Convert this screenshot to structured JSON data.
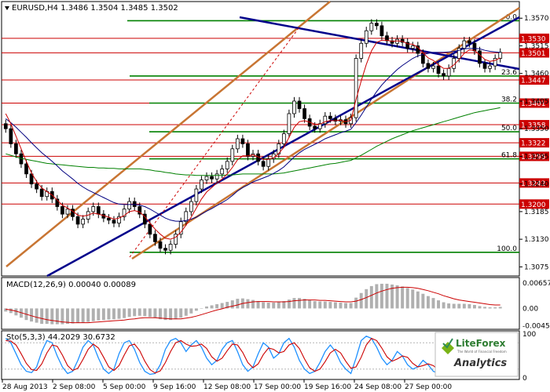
{
  "colors": {
    "up": "#000000",
    "down": "#000000",
    "ma_red": "#cc0000",
    "ma_blue": "#000080",
    "ma_green": "#008000",
    "fib": "#008000",
    "level_red": "#cc0000",
    "trend_blue": "#00008b",
    "channel_orange": "#c87533",
    "macd_hist": "#b0b0b0",
    "macd_signal": "#cc0000",
    "stoch_main": "#1e90ff",
    "stoch_signal": "#cc0000"
  },
  "chart_data": {
    "type": "candlestick",
    "title": "EURUSD,H4  1.3486 1.3504 1.3485 1.3502",
    "ylim": [
      1.306,
      1.36
    ],
    "price_ticks": [
      "1.3570",
      "1.3515",
      "1.3460",
      "1.3405",
      "1.3350",
      "1.3295",
      "1.3240",
      "1.3185",
      "1.3130",
      "1.3075"
    ],
    "x_labels": [
      "28 Aug 2013",
      "2 Sep 08:00",
      "5 Sep 00:00",
      "9 Sep 16:00",
      "12 Sep 08:00",
      "17 Sep 00:00",
      "19 Sep 16:00",
      "24 Sep 08:00",
      "27 Sep 00:00"
    ],
    "resistance_levels": [
      {
        "label": "1.3530",
        "value": 1.353
      },
      {
        "label": "1.3501",
        "value": 1.3501
      },
      {
        "label": "1.3447",
        "value": 1.3447
      },
      {
        "label": "1.3401",
        "value": 1.3401
      },
      {
        "label": "1.3358",
        "value": 1.3358
      },
      {
        "label": "1.3322",
        "value": 1.3322
      },
      {
        "label": "1.3295",
        "value": 1.3295
      },
      {
        "label": "1.3242",
        "value": 1.3242
      },
      {
        "label": "1.3200",
        "value": 1.32
      }
    ],
    "fib_levels": [
      {
        "label": "0.0",
        "value": 1.3565
      },
      {
        "label": "23.6",
        "value": 1.3455
      },
      {
        "label": "38.2",
        "value": 1.3401
      },
      {
        "label": "50.0",
        "value": 1.3344
      },
      {
        "label": "61.8",
        "value": 1.329
      },
      {
        "label": "100.0",
        "value": 1.3104
      }
    ],
    "closes": [
      1.335,
      1.332,
      1.33,
      1.328,
      1.326,
      1.324,
      1.323,
      1.3215,
      1.3225,
      1.321,
      1.3195,
      1.318,
      1.319,
      1.3175,
      1.316,
      1.317,
      1.3185,
      1.3195,
      1.318,
      1.3172,
      1.3168,
      1.3162,
      1.3175,
      1.319,
      1.3205,
      1.3195,
      1.318,
      1.316,
      1.314,
      1.3125,
      1.3112,
      1.3108,
      1.312,
      1.314,
      1.3165,
      1.3185,
      1.3205,
      1.323,
      1.3248,
      1.3255,
      1.325,
      1.326,
      1.327,
      1.3285,
      1.331,
      1.333,
      1.332,
      1.3295,
      1.33,
      1.3285,
      1.3275,
      1.329,
      1.33,
      1.332,
      1.334,
      1.338,
      1.3405,
      1.339,
      1.337,
      1.3355,
      1.335,
      1.336,
      1.3375,
      1.337,
      1.3365,
      1.3368,
      1.336,
      1.3372,
      1.349,
      1.352,
      1.3545,
      1.356,
      1.3555,
      1.3535,
      1.3525,
      1.352,
      1.3528,
      1.3522,
      1.351,
      1.3515,
      1.35,
      1.348,
      1.347,
      1.3475,
      1.346,
      1.3455,
      1.347,
      1.349,
      1.351,
      1.3525,
      1.352,
      1.3505,
      1.348,
      1.347,
      1.3475,
      1.349,
      1.3502
    ],
    "ma_red": [
      1.338,
      1.336,
      1.3335,
      1.331,
      1.3285,
      1.3262,
      1.3245,
      1.3232,
      1.3225,
      1.3218,
      1.3208,
      1.3198,
      1.3192,
      1.3186,
      1.3178,
      1.3176,
      1.3178,
      1.3182,
      1.318,
      1.3177,
      1.3174,
      1.317,
      1.3172,
      1.3177,
      1.3185,
      1.3187,
      1.3184,
      1.3175,
      1.3162,
      1.315,
      1.314,
      1.3132,
      1.313,
      1.3134,
      1.3144,
      1.3158,
      1.3174,
      1.3192,
      1.321,
      1.3224,
      1.3233,
      1.3242,
      1.325,
      1.326,
      1.3273,
      1.3288,
      1.3296,
      1.3296,
      1.3298,
      1.3294,
      1.3289,
      1.3289,
      1.3292,
      1.3301,
      1.3313,
      1.3333,
      1.3353,
      1.3364,
      1.3366,
      1.3363,
      1.3359,
      1.3359,
      1.3364,
      1.3366,
      1.3366,
      1.3367,
      1.3364,
      1.3367,
      1.3408,
      1.3445,
      1.3478,
      1.3505,
      1.3522,
      1.3526,
      1.3526,
      1.3524,
      1.3525,
      1.3524,
      1.3519,
      1.3518,
      1.3512,
      1.3501,
      1.3491,
      1.3486,
      1.3477,
      1.347,
      1.347,
      1.3477,
      1.3488,
      1.35,
      1.3507,
      1.3506,
      1.3497,
      1.3488,
      1.3484,
      1.3486,
      1.3491
    ],
    "ma_blue": [
      1.337,
      1.3362,
      1.3353,
      1.3343,
      1.3333,
      1.3322,
      1.3312,
      1.3302,
      1.3294,
      1.3285,
      1.3276,
      1.3266,
      1.3258,
      1.325,
      1.3241,
      1.3234,
      1.3228,
      1.3223,
      1.3218,
      1.3213,
      1.3208,
      1.3203,
      1.32,
      1.3199,
      1.3199,
      1.3199,
      1.3198,
      1.3195,
      1.319,
      1.3184,
      1.3178,
      1.3172,
      1.3168,
      1.3166,
      1.3166,
      1.3167,
      1.317,
      1.3174,
      1.318,
      1.3186,
      1.3191,
      1.3197,
      1.3203,
      1.3209,
      1.3217,
      1.3226,
      1.3233,
      1.3238,
      1.3244,
      1.3248,
      1.3252,
      1.3256,
      1.3261,
      1.3267,
      1.3274,
      1.3284,
      1.3294,
      1.3302,
      1.3309,
      1.3314,
      1.3319,
      1.3324,
      1.333,
      1.3334,
      1.3338,
      1.3342,
      1.3345,
      1.3349,
      1.3362,
      1.3377,
      1.3393,
      1.3409,
      1.3424,
      1.3437,
      1.3448,
      1.3458,
      1.3468,
      1.3476,
      1.3483,
      1.349,
      1.3495,
      1.3498,
      1.35,
      1.3502,
      1.3502,
      1.3502,
      1.3503,
      1.3504,
      1.3506,
      1.3509,
      1.351,
      1.351,
      1.3509,
      1.3506,
      1.3504,
      1.3503,
      1.3502
    ],
    "ma_green": [
      1.33,
      1.3297,
      1.3294,
      1.3291,
      1.3289,
      1.3287,
      1.3285,
      1.3283,
      1.3281,
      1.328,
      1.3279,
      1.3278,
      1.3277,
      1.3276,
      1.3275,
      1.3274,
      1.3273,
      1.3273,
      1.3272,
      1.3272,
      1.3271,
      1.3271,
      1.327,
      1.327,
      1.327,
      1.327,
      1.327,
      1.3269,
      1.3268,
      1.3266,
      1.3265,
      1.3263,
      1.3262,
      1.326,
      1.3259,
      1.3258,
      1.3258,
      1.3257,
      1.3257,
      1.3257,
      1.3257,
      1.3257,
      1.3257,
      1.3258,
      1.3258,
      1.3259,
      1.326,
      1.326,
      1.326,
      1.326,
      1.326,
      1.326,
      1.326,
      1.3261,
      1.3262,
      1.3264,
      1.3266,
      1.3268,
      1.327,
      1.3272,
      1.3274,
      1.3276,
      1.3278,
      1.328,
      1.3281,
      1.3283,
      1.3285,
      1.3287,
      1.3292,
      1.3297,
      1.3303,
      1.3309,
      1.3315,
      1.332,
      1.3325,
      1.333,
      1.3334,
      1.3338,
      1.3342,
      1.3346,
      1.3349,
      1.3352,
      1.3355,
      1.3358,
      1.3361,
      1.3364,
      1.3367,
      1.337,
      1.3373,
      1.3376,
      1.3379,
      1.3382,
      1.3384,
      1.3386,
      1.3388,
      1.339,
      1.3392
    ],
    "macd": {
      "label": "MACD(12,26,9) 0.00040 0.00089",
      "ylim": [
        -0.005,
        0.0072
      ],
      "ticks": [
        "0.00657",
        "0.00",
        "-0.00453"
      ],
      "hist": [
        -0.0008,
        -0.0012,
        -0.0018,
        -0.0024,
        -0.003,
        -0.0034,
        -0.0037,
        -0.004,
        -0.004,
        -0.0041,
        -0.0041,
        -0.0041,
        -0.004,
        -0.0039,
        -0.0038,
        -0.0037,
        -0.0035,
        -0.0033,
        -0.0031,
        -0.003,
        -0.0029,
        -0.0028,
        -0.0027,
        -0.0025,
        -0.0022,
        -0.002,
        -0.0019,
        -0.002,
        -0.0022,
        -0.0025,
        -0.0028,
        -0.003,
        -0.003,
        -0.0028,
        -0.0024,
        -0.0019,
        -0.0013,
        -0.0006,
        0.0,
        0.0005,
        0.0008,
        0.0011,
        0.0014,
        0.0017,
        0.0021,
        0.0025,
        0.0026,
        0.0024,
        0.0022,
        0.0019,
        0.0016,
        0.0015,
        0.0015,
        0.0017,
        0.0019,
        0.0023,
        0.0027,
        0.0027,
        0.0025,
        0.0022,
        0.0019,
        0.0018,
        0.0018,
        0.0017,
        0.0016,
        0.0015,
        0.0014,
        0.0014,
        0.0028,
        0.004,
        0.005,
        0.0058,
        0.0063,
        0.0064,
        0.0064,
        0.0062,
        0.006,
        0.0057,
        0.0053,
        0.0049,
        0.0044,
        0.0038,
        0.0032,
        0.0027,
        0.0021,
        0.0016,
        0.0013,
        0.0012,
        0.0012,
        0.0012,
        0.0011,
        0.0009,
        0.0006,
        0.0004,
        0.0003,
        0.0003,
        0.0004
      ],
      "signal": [
        -0.0002,
        -0.0004,
        -0.0007,
        -0.0011,
        -0.0015,
        -0.0019,
        -0.0023,
        -0.0026,
        -0.0029,
        -0.0031,
        -0.0033,
        -0.0035,
        -0.0036,
        -0.0037,
        -0.0037,
        -0.0037,
        -0.0037,
        -0.0036,
        -0.0035,
        -0.0034,
        -0.0033,
        -0.0032,
        -0.0031,
        -0.003,
        -0.0028,
        -0.0027,
        -0.0025,
        -0.0024,
        -0.0024,
        -0.0024,
        -0.0025,
        -0.0026,
        -0.0027,
        -0.0027,
        -0.0027,
        -0.0025,
        -0.0023,
        -0.002,
        -0.0016,
        -0.0012,
        -0.0008,
        -0.0004,
        -0.0001,
        0.0003,
        0.0006,
        0.0009,
        0.0013,
        0.0015,
        0.0017,
        0.0018,
        0.0018,
        0.0018,
        0.0017,
        0.0017,
        0.0017,
        0.0018,
        0.002,
        0.0021,
        0.0022,
        0.0022,
        0.0022,
        0.0021,
        0.0021,
        0.002,
        0.0019,
        0.0018,
        0.0017,
        0.0017,
        0.0019,
        0.0023,
        0.0028,
        0.0034,
        0.004,
        0.0045,
        0.0049,
        0.0052,
        0.0054,
        0.0055,
        0.0055,
        0.0054,
        0.0052,
        0.0049,
        0.0046,
        0.0042,
        0.0038,
        0.0033,
        0.0029,
        0.0025,
        0.0022,
        0.002,
        0.0018,
        0.0016,
        0.0014,
        0.0012,
        0.001,
        0.0009,
        0.0009
      ]
    },
    "stoch": {
      "label": "Sto(5,3,3) 44.2029 30.6732",
      "ylim": [
        0,
        100
      ],
      "ticks": [
        "100",
        "0"
      ],
      "main": [
        90,
        80,
        55,
        30,
        15,
        12,
        25,
        60,
        85,
        80,
        50,
        25,
        10,
        15,
        40,
        70,
        85,
        75,
        45,
        20,
        10,
        20,
        55,
        80,
        85,
        65,
        35,
        15,
        8,
        10,
        30,
        65,
        85,
        90,
        80,
        60,
        75,
        85,
        70,
        45,
        30,
        40,
        65,
        80,
        85,
        60,
        30,
        15,
        25,
        55,
        80,
        70,
        45,
        55,
        80,
        90,
        70,
        40,
        20,
        10,
        15,
        35,
        60,
        75,
        60,
        35,
        20,
        10,
        45,
        85,
        95,
        90,
        70,
        45,
        30,
        40,
        60,
        50,
        30,
        20,
        25,
        40,
        30,
        15,
        10,
        20,
        45,
        75,
        90,
        85,
        60,
        30,
        12,
        8,
        15,
        30,
        44
      ],
      "signal": [
        85,
        84,
        75,
        55,
        33,
        19,
        17,
        32,
        57,
        75,
        72,
        52,
        28,
        17,
        22,
        42,
        65,
        77,
        68,
        47,
        25,
        17,
        28,
        52,
        73,
        77,
        62,
        38,
        19,
        11,
        16,
        35,
        60,
        80,
        85,
        77,
        72,
        73,
        77,
        67,
        48,
        38,
        45,
        62,
        77,
        75,
        58,
        35,
        23,
        32,
        53,
        68,
        65,
        57,
        60,
        75,
        80,
        67,
        43,
        23,
        15,
        20,
        37,
        57,
        65,
        57,
        38,
        22,
        25,
        47,
        75,
        90,
        85,
        68,
        48,
        38,
        43,
        50,
        47,
        33,
        25,
        28,
        32,
        28,
        18,
        15,
        25,
        47,
        70,
        83,
        78,
        58,
        34,
        17,
        12,
        18,
        31
      ]
    }
  },
  "watermark": {
    "brand": "LiteForex",
    "tagline": "The World of Financial Freedom",
    "product": "Analytics"
  }
}
